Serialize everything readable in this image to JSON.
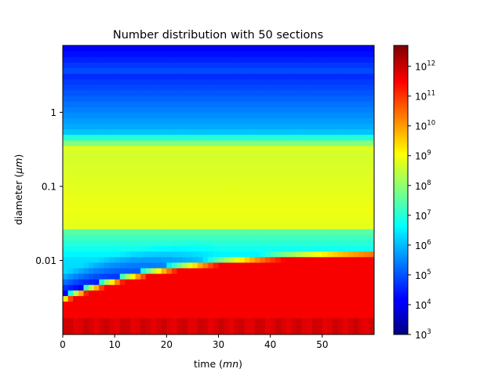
{
  "chart_data": {
    "type": "heatmap",
    "title": "Number distribution with 50 sections",
    "xlabel_text": "time ",
    "xlabel_unit": "mn",
    "ylabel_text": "diameter ",
    "ylabel_unit": "μm",
    "x_ticks": [
      0,
      10,
      20,
      30,
      40,
      50
    ],
    "x_tick_labels": [
      "0",
      "10",
      "20",
      "30",
      "40",
      "50"
    ],
    "xlim": [
      0,
      60
    ],
    "y_scale": "log",
    "y_ticks": [
      0.01,
      0.1,
      1
    ],
    "y_tick_labels": [
      "0.01",
      "0.1",
      "1"
    ],
    "ylim": [
      0.001,
      8
    ],
    "colorbar": {
      "scale": "log",
      "colormap": "jet",
      "range": [
        1000,
        5000000000000
      ],
      "tick_values": [
        1000,
        10000,
        100000,
        1000000,
        10000000,
        100000000,
        1000000000,
        10000000000,
        100000000000,
        1000000000000
      ],
      "tick_bases": [
        "10",
        "10",
        "10",
        "10",
        "10",
        "10",
        "10",
        "10",
        "10",
        "10"
      ],
      "tick_exponents": [
        "3",
        "4",
        "5",
        "6",
        "7",
        "8",
        "9",
        "10",
        "11",
        "12"
      ]
    },
    "description": "Number concentration vs time and particle diameter; a high-concentration band (~1e11-1e12) grows from ~0.003 µm to ~0.015 µm over 60 min, with a low-concentration gap just below it at early times; ~1e9 band around 0.02-0.3 µm, decreasing to ~1e4 at the largest diameters."
  }
}
